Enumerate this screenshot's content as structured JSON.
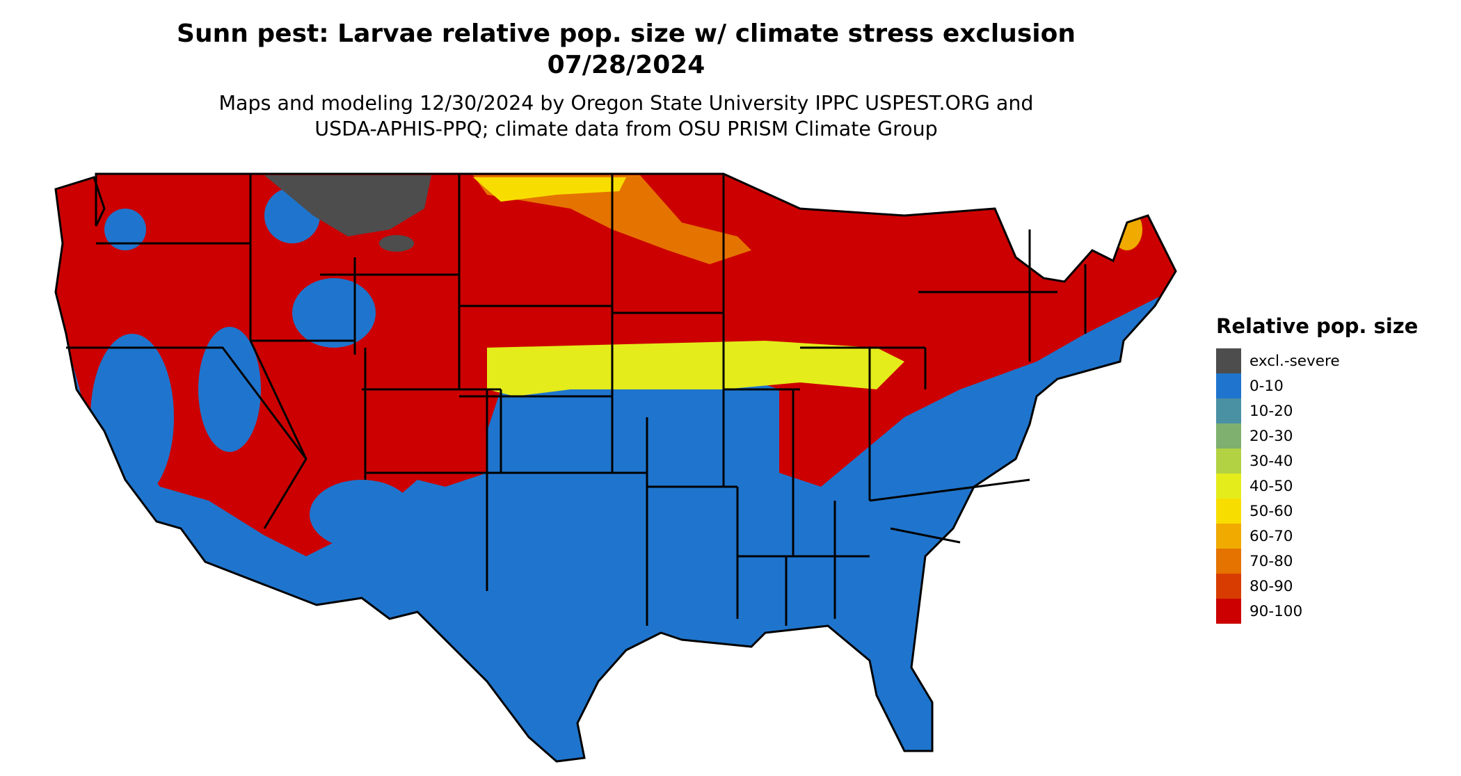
{
  "map": {
    "title_line1": "Sunn pest: Larvae relative pop. size w/ climate stress exclusion",
    "title_line2": "07/28/2024",
    "subtitle_line1": "Maps and modeling 12/30/2024 by Oregon State University IPPC USPEST.ORG and",
    "subtitle_line2": "USDA-APHIS-PPQ; climate data from OSU PRISM Climate Group",
    "region": "Contiguous United States"
  },
  "legend": {
    "title": "Relative pop. size",
    "items": [
      {
        "label": "excl.-severe",
        "color": "#4d4d4d"
      },
      {
        "label": "0-10",
        "color": "#1f75cd"
      },
      {
        "label": "10-20",
        "color": "#4a91a3"
      },
      {
        "label": "20-30",
        "color": "#7fb070"
      },
      {
        "label": "30-40",
        "color": "#b2d243"
      },
      {
        "label": "40-50",
        "color": "#e4ec1c"
      },
      {
        "label": "50-60",
        "color": "#f8de00"
      },
      {
        "label": "60-70",
        "color": "#f0aa00"
      },
      {
        "label": "70-80",
        "color": "#e57300"
      },
      {
        "label": "80-90",
        "color": "#d83c00"
      },
      {
        "label": "90-100",
        "color": "#cc0000"
      }
    ]
  }
}
